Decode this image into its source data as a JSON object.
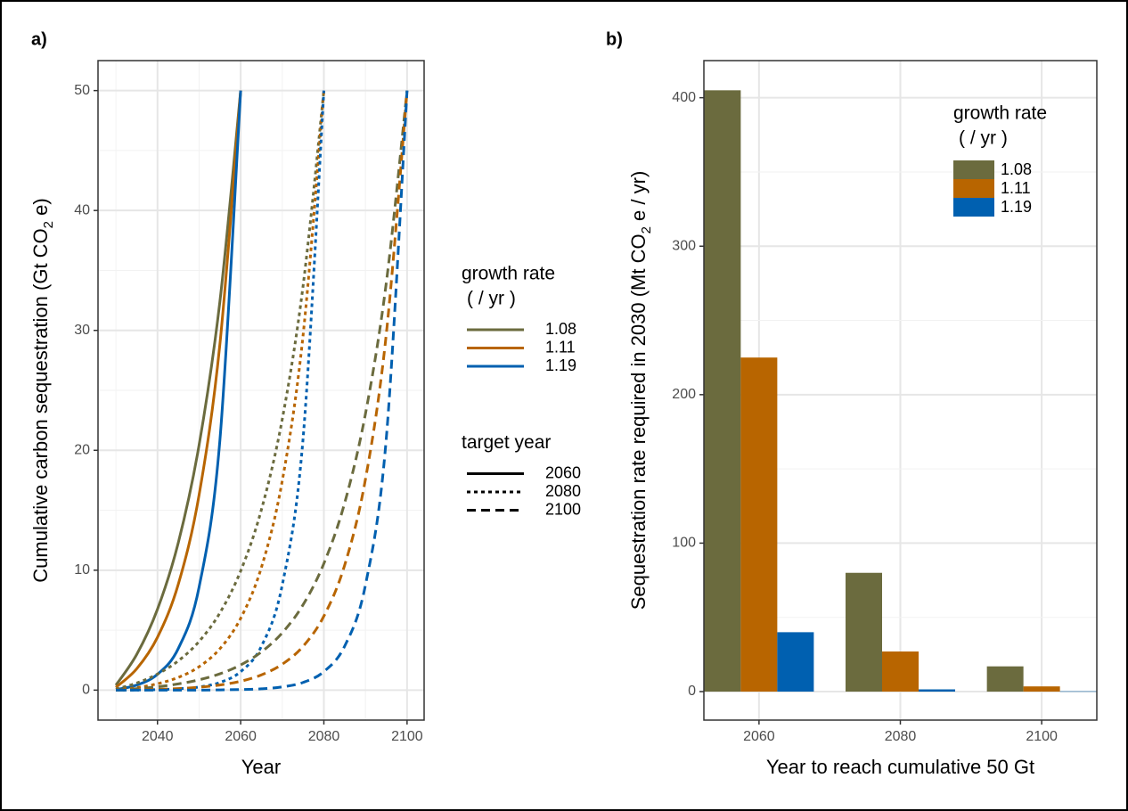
{
  "chart_data": [
    {
      "type": "line",
      "panel_label": "a)",
      "xlabel": "Year",
      "ylabel": [
        "Cumulative carbon sequestration  (Gt CO",
        "2",
        " e)"
      ],
      "x": [
        2030,
        2035,
        2040,
        2045,
        2050,
        2055,
        2060,
        2065,
        2070,
        2075,
        2080,
        2085,
        2090,
        2095,
        2100
      ],
      "xlim": [
        2025.7,
        2104.1
      ],
      "xticks": [
        2040,
        2060,
        2080,
        2100
      ],
      "minor_xticks": [
        2030,
        2050,
        2070,
        2090
      ],
      "ylim": [
        -2.5,
        52.5
      ],
      "yticks": [
        0,
        10,
        20,
        30,
        40,
        50
      ],
      "minor_yticks": [
        5,
        15,
        25,
        35,
        45
      ],
      "grid": true,
      "legend_position": "right",
      "series": [
        {
          "color": "#6b6b3e",
          "dash": "solid",
          "values": [
            0.41,
            2.97,
            6.75,
            12.29,
            20.44,
            32.4,
            50,
            null,
            null,
            null,
            null,
            null,
            null,
            null,
            null
          ]
        },
        {
          "color": "#b86500",
          "dash": "solid",
          "values": [
            0.23,
            1.78,
            4.41,
            8.83,
            16.28,
            28.84,
            50,
            null,
            null,
            null,
            null,
            null,
            null,
            null,
            null
          ]
        },
        {
          "color": "#0060b0",
          "dash": "solid",
          "values": [
            0.04,
            0.42,
            1.32,
            3.47,
            8.59,
            20.83,
            50,
            null,
            null,
            null,
            null,
            null,
            null,
            null,
            null
          ]
        },
        {
          "color": "#6b6b3e",
          "dash": "dotted",
          "values": [
            0.08,
            0.59,
            1.34,
            2.44,
            4.06,
            6.44,
            9.94,
            15.07,
            22.6,
            33.7,
            50,
            null,
            null,
            null,
            null
          ]
        },
        {
          "color": "#b86500",
          "dash": "dotted",
          "values": [
            0.03,
            0.21,
            0.53,
            1.06,
            1.95,
            3.45,
            5.99,
            10.25,
            17.46,
            29.58,
            50,
            null,
            null,
            null,
            null
          ]
        },
        {
          "color": "#0060b0",
          "dash": "dotted",
          "values": [
            0,
            0.01,
            0.04,
            0.11,
            0.26,
            0.64,
            1.54,
            3.67,
            8.77,
            20.97,
            50,
            null,
            null,
            null,
            null
          ]
        },
        {
          "color": "#6b6b3e",
          "dash": "dashed",
          "values": [
            0.02,
            0.12,
            0.28,
            0.52,
            0.86,
            1.36,
            2.1,
            3.19,
            4.78,
            7.12,
            10.56,
            15.61,
            23.05,
            33.95,
            50
          ]
        },
        {
          "color": "#b86500",
          "dash": "dashed",
          "values": [
            0,
            0.03,
            0.07,
            0.13,
            0.24,
            0.43,
            0.74,
            1.27,
            2.16,
            3.65,
            6.17,
            10.42,
            17.59,
            29.67,
            50
          ]
        },
        {
          "color": "#0060b0",
          "dash": "dashed",
          "values": [
            0,
            0,
            0,
            0,
            0,
            0.02,
            0.05,
            0.11,
            0.27,
            0.64,
            1.54,
            3.67,
            8.77,
            20.97,
            50
          ]
        }
      ],
      "legends": [
        {
          "title": [
            "growth rate",
            "( / yr )"
          ],
          "items": [
            {
              "label": "1.08",
              "color": "#6b6b3e"
            },
            {
              "label": "1.11",
              "color": "#b86500"
            },
            {
              "label": "1.19",
              "color": "#0060b0"
            }
          ]
        },
        {
          "title": [
            "target year"
          ],
          "items": [
            {
              "label": "2060",
              "dash": "solid"
            },
            {
              "label": "2080",
              "dash": "dotted"
            },
            {
              "label": "2100",
              "dash": "dashed"
            }
          ]
        }
      ]
    },
    {
      "type": "bar",
      "panel_label": "b)",
      "xlabel": "Year to reach cumulative 50 Gt",
      "ylabel": [
        "Sequestration rate required in 2030 (Mt CO",
        "2",
        " e / yr)"
      ],
      "categories": [
        "2060",
        "2080",
        "2100"
      ],
      "ylim": [
        -19.2,
        425
      ],
      "yticks": [
        0,
        100,
        200,
        300,
        400
      ],
      "minor_yticks": [
        50,
        150,
        250,
        350
      ],
      "grid": true,
      "legend_position": "top-right",
      "series": [
        {
          "name": "1.08",
          "color": "#6b6b3e",
          "values": [
            405,
            80,
            17
          ]
        },
        {
          "name": "1.11",
          "color": "#b86500",
          "values": [
            225,
            27,
            3.5
          ]
        },
        {
          "name": "1.19",
          "color": "#0060b0",
          "values": [
            40,
            1.5,
            0.2
          ]
        }
      ],
      "legend_title": [
        "growth rate",
        "( / yr )"
      ]
    }
  ]
}
